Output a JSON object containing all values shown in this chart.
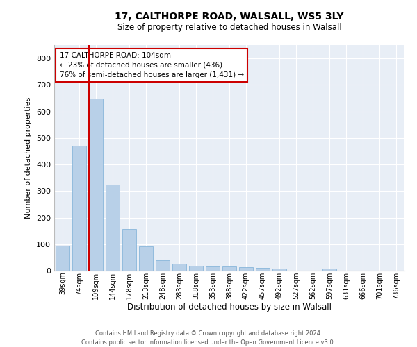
{
  "title_line1": "17, CALTHORPE ROAD, WALSALL, WS5 3LY",
  "title_line2": "Size of property relative to detached houses in Walsall",
  "xlabel": "Distribution of detached houses by size in Walsall",
  "ylabel": "Number of detached properties",
  "footer_line1": "Contains HM Land Registry data © Crown copyright and database right 2024.",
  "footer_line2": "Contains public sector information licensed under the Open Government Licence v3.0.",
  "annotation_line1": "17 CALTHORPE ROAD: 104sqm",
  "annotation_line2": "← 23% of detached houses are smaller (436)",
  "annotation_line3": "76% of semi-detached houses are larger (1,431) →",
  "bar_color": "#b8d0e8",
  "bar_edge_color": "#7aaed6",
  "indicator_color": "#cc0000",
  "background_color": "#e8eef6",
  "categories": [
    "39sqm",
    "74sqm",
    "109sqm",
    "144sqm",
    "178sqm",
    "213sqm",
    "248sqm",
    "283sqm",
    "318sqm",
    "353sqm",
    "388sqm",
    "422sqm",
    "457sqm",
    "492sqm",
    "527sqm",
    "562sqm",
    "597sqm",
    "631sqm",
    "666sqm",
    "701sqm",
    "736sqm"
  ],
  "values": [
    95,
    470,
    648,
    325,
    158,
    92,
    40,
    25,
    18,
    15,
    15,
    12,
    10,
    8,
    0,
    0,
    8,
    0,
    0,
    0,
    0
  ],
  "ylim": [
    0,
    850
  ],
  "yticks": [
    0,
    100,
    200,
    300,
    400,
    500,
    600,
    700,
    800
  ],
  "indicator_bar_index": 2
}
